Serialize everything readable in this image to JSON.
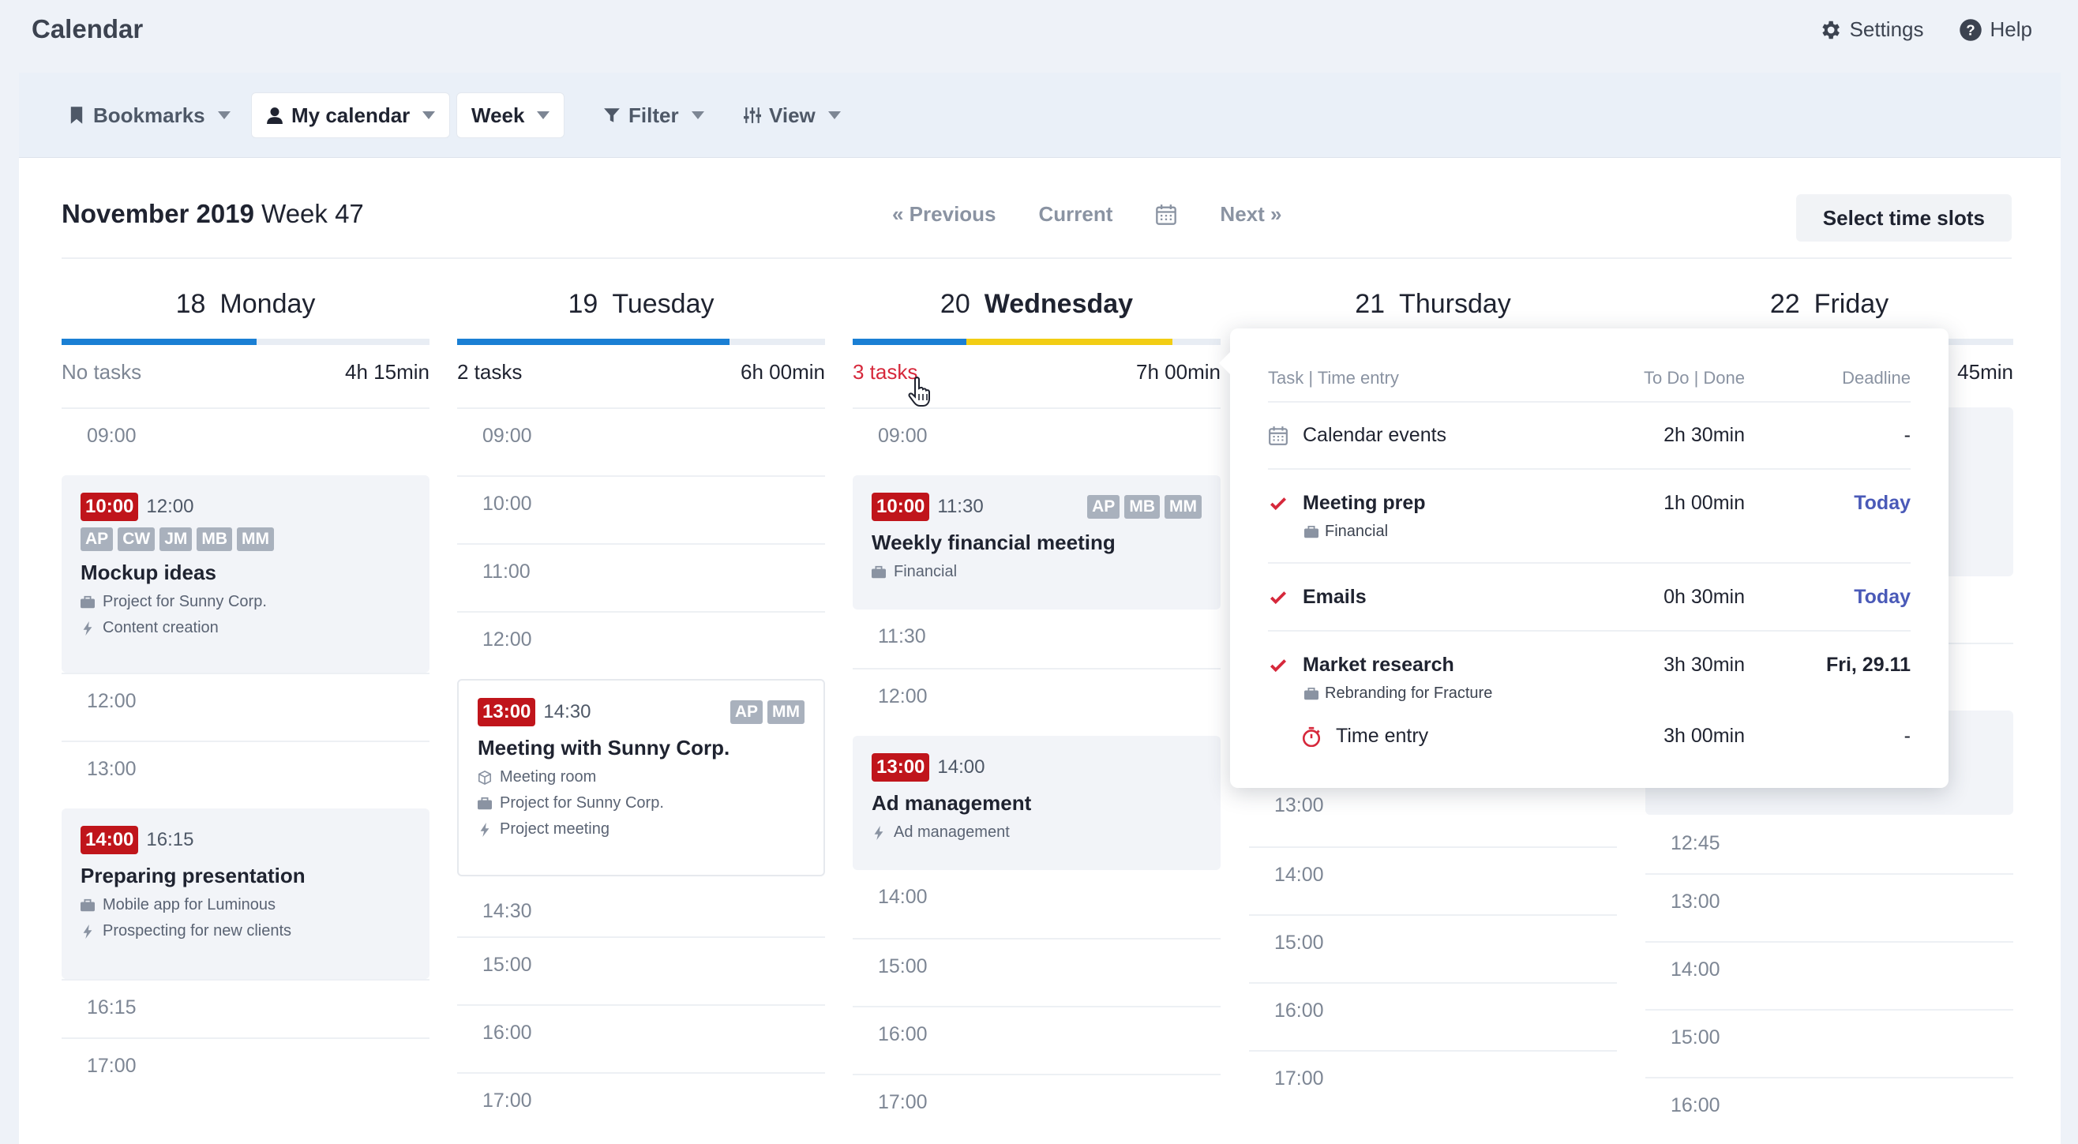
{
  "app": {
    "title": "Calendar",
    "settings_label": "Settings",
    "help_label": "Help"
  },
  "toolbar": {
    "bookmarks": "Bookmarks",
    "my_calendar": "My calendar",
    "week": "Week",
    "filter": "Filter",
    "view": "View"
  },
  "header": {
    "month": "November 2019",
    "week": "Week 47",
    "previous": "« Previous",
    "current": "Current",
    "next": "Next »",
    "select_slots": "Select time slots"
  },
  "days": [
    {
      "num": "18",
      "name": "Monday",
      "tasks": "No tasks",
      "duration": "4h 15min",
      "progress": [
        {
          "color": "#1a7fd4",
          "fraction": 0.53
        }
      ]
    },
    {
      "num": "19",
      "name": "Tuesday",
      "tasks": "2 tasks",
      "duration": "6h 00min",
      "progress": [
        {
          "color": "#1a7fd4",
          "fraction": 0.74
        }
      ]
    },
    {
      "num": "20",
      "name": "Wednesday",
      "tasks": "3 tasks",
      "duration": "7h 00min",
      "progress": [
        {
          "color": "#1a7fd4",
          "fraction": 0.31
        },
        {
          "color": "#f2cd14",
          "fraction": 0.56
        }
      ]
    },
    {
      "num": "21",
      "name": "Thursday"
    },
    {
      "num": "22",
      "name": "Friday",
      "duration": "45min"
    }
  ],
  "monday": {
    "slots": [
      "09:00",
      "12:00",
      "13:00",
      "16:15",
      "17:00"
    ],
    "ev1": {
      "start": "10:00",
      "end": "12:00",
      "tags": [
        "AP",
        "CW",
        "JM",
        "MB",
        "MM"
      ],
      "title": "Mockup ideas",
      "project": "Project for Sunny Corp.",
      "activity": "Content creation"
    },
    "ev2": {
      "start": "14:00",
      "end": "16:15",
      "title": "Preparing presentation",
      "project": "Mobile app for Luminous",
      "activity": "Prospecting for new clients"
    }
  },
  "tuesday": {
    "slots": [
      "09:00",
      "10:00",
      "11:00",
      "12:00",
      "14:30",
      "15:00",
      "16:00",
      "17:00"
    ],
    "ev1": {
      "start": "13:00",
      "end": "14:30",
      "tags": [
        "AP",
        "MM"
      ],
      "title": "Meeting with Sunny Corp.",
      "room": "Meeting room",
      "project": "Project for Sunny Corp.",
      "activity": "Project meeting"
    }
  },
  "wednesday": {
    "slots": [
      "09:00",
      "11:30",
      "12:00",
      "14:00",
      "15:00",
      "16:00",
      "17:00"
    ],
    "ev1": {
      "start": "10:00",
      "end": "11:30",
      "tags": [
        "AP",
        "MB",
        "MM"
      ],
      "title": "Weekly financial meeting",
      "project": "Financial"
    },
    "ev2": {
      "start": "13:00",
      "end": "14:00",
      "title": "Ad management",
      "activity": "Ad management"
    }
  },
  "thursday": {
    "slots": [
      "13:00",
      "14:00",
      "15:00",
      "16:00",
      "17:00"
    ]
  },
  "friday": {
    "slots": [
      "12:45",
      "13:00",
      "14:00",
      "15:00",
      "16:00"
    ]
  },
  "popup": {
    "headers": {
      "task": "Task | Time entry",
      "todo": "To Do | Done",
      "deadline": "Deadline"
    },
    "rows": [
      {
        "name": "Calendar events",
        "todo": "2h 30min",
        "deadline": "-"
      },
      {
        "name": "Meeting prep",
        "sub": "Financial",
        "todo": "1h 00min",
        "deadline": "Today"
      },
      {
        "name": "Emails",
        "todo": "0h 30min",
        "deadline": "Today"
      },
      {
        "name": "Market research",
        "sub": "Rebranding for Fracture",
        "todo": "3h 30min",
        "deadline": "Fri, 29.11"
      },
      {
        "name": "Time entry",
        "todo": "3h 00min",
        "deadline": "-"
      }
    ]
  },
  "colors": {
    "accent_blue": "#1a7fd4",
    "accent_yellow": "#f2cd14",
    "red": "#c0151b",
    "link": "#4a5ab8"
  }
}
